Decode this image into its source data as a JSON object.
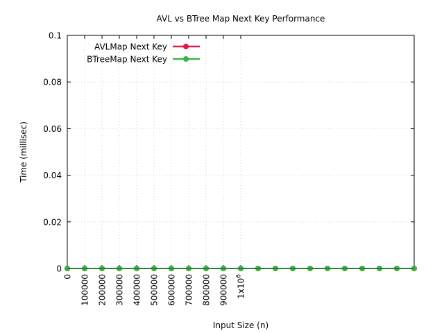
{
  "chart_data": {
    "type": "line",
    "title": "AVL vs BTree Map Next Key Performance",
    "xlabel": "Input Size (n)",
    "ylabel": "Time (millisec)",
    "xlim": [
      0,
      2000000
    ],
    "ylim": [
      0,
      0.1
    ],
    "x_ticks": [
      {
        "value": 0,
        "label": "0"
      },
      {
        "value": 100000,
        "label": "100000"
      },
      {
        "value": 200000,
        "label": "200000"
      },
      {
        "value": 300000,
        "label": "300000"
      },
      {
        "value": 400000,
        "label": "400000"
      },
      {
        "value": 500000,
        "label": "500000"
      },
      {
        "value": 600000,
        "label": "600000"
      },
      {
        "value": 700000,
        "label": "700000"
      },
      {
        "value": 800000,
        "label": "800000"
      },
      {
        "value": 900000,
        "label": "900000"
      },
      {
        "value": 1000000,
        "label": "1x10",
        "sup": "6"
      }
    ],
    "y_ticks": [
      {
        "value": 0,
        "label": "0"
      },
      {
        "value": 0.02,
        "label": "0.02"
      },
      {
        "value": 0.04,
        "label": "0.04"
      },
      {
        "value": 0.06,
        "label": "0.06"
      },
      {
        "value": 0.08,
        "label": "0.08"
      },
      {
        "value": 0.1,
        "label": "0.1"
      }
    ],
    "grid": true,
    "legend_position": "top-left",
    "x": [
      0,
      100000,
      200000,
      300000,
      400000,
      500000,
      600000,
      700000,
      800000,
      900000,
      1000000,
      1100000,
      1200000,
      1300000,
      1400000,
      1500000,
      1600000,
      1700000,
      1800000,
      1900000,
      2000000
    ],
    "series": [
      {
        "name": "AVLMap Next Key",
        "color": "#dc1a4b",
        "values": [
          0,
          0,
          0,
          0,
          0,
          0,
          0,
          0,
          0,
          0,
          0,
          0,
          0,
          0,
          0,
          0,
          0,
          0,
          0,
          0,
          0
        ]
      },
      {
        "name": "BTreeMap Next Key",
        "color": "#3cb34a",
        "values": [
          0,
          0,
          0,
          0,
          0,
          0,
          0,
          0,
          0,
          0,
          0,
          0,
          0,
          0,
          0,
          0,
          0,
          0,
          0,
          0,
          0
        ]
      }
    ]
  }
}
